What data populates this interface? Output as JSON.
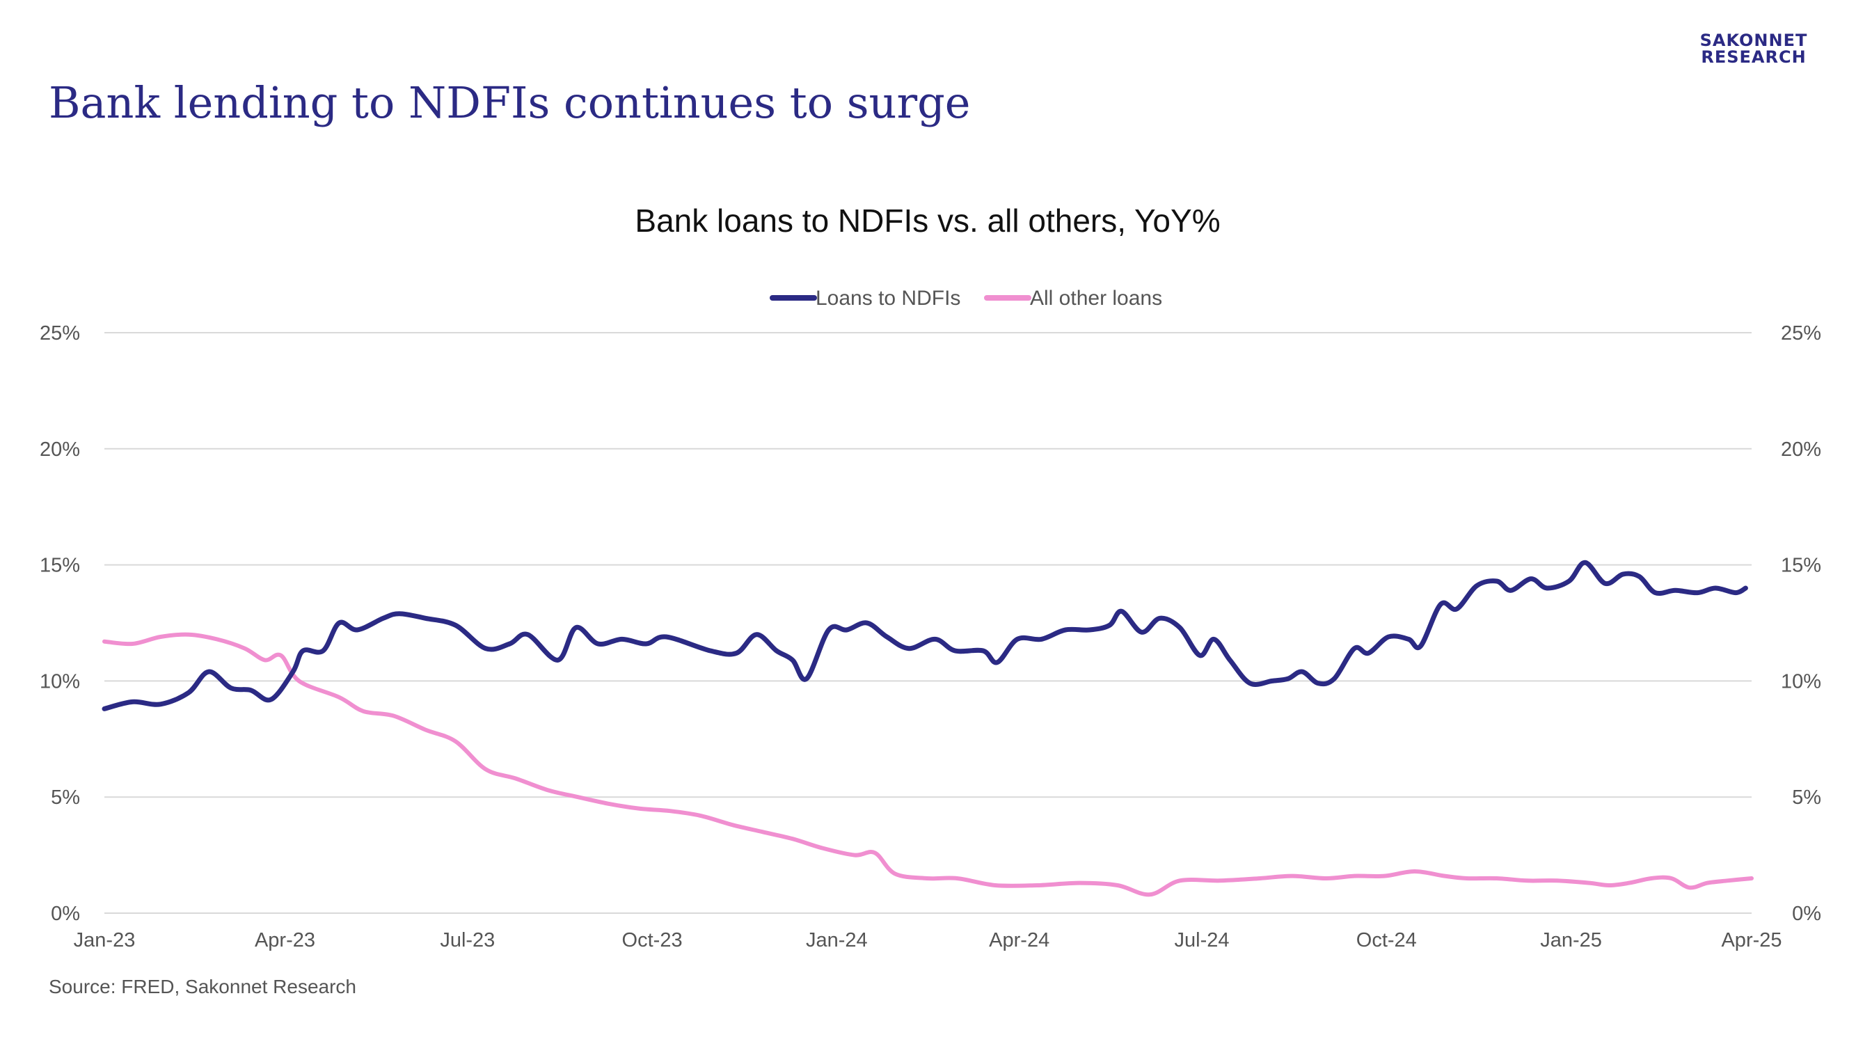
{
  "brand": {
    "logo_line1": "SAKONNET",
    "logo_line2": "RESEARCH"
  },
  "slide_title": "Bank lending to NDFIs continues to surge",
  "source": "Source: FRED, Sakonnet Research",
  "colors": {
    "ndfi": "#2b2a84",
    "other": "#f08fd0",
    "title": "#2b2a84",
    "grid": "#d9d9d9",
    "axis_text": "#555555"
  },
  "chart_data": {
    "type": "line",
    "title": "Bank loans to NDFIs vs. all others, YoY%",
    "legend_position": "top-center",
    "grid": true,
    "x_ticks": [
      "Jan-23",
      "Apr-23",
      "Jul-23",
      "Oct-23",
      "Jan-24",
      "Apr-24",
      "Jul-24",
      "Oct-24",
      "Jan-25",
      "Apr-25"
    ],
    "y_ticks": [
      "0%",
      "5%",
      "10%",
      "15%",
      "20%",
      "25%"
    ],
    "ylim": [
      0,
      25
    ],
    "xlim": [
      "2023-01-01",
      "2025-04-01"
    ],
    "series": [
      {
        "name": "Loans to NDFIs",
        "color": "#2b2a84",
        "points": [
          [
            "2023-01-01",
            8.8
          ],
          [
            "2023-01-15",
            9.1
          ],
          [
            "2023-01-29",
            9.0
          ],
          [
            "2023-02-12",
            9.5
          ],
          [
            "2023-02-22",
            10.4
          ],
          [
            "2023-03-05",
            9.7
          ],
          [
            "2023-03-15",
            9.6
          ],
          [
            "2023-03-25",
            9.2
          ],
          [
            "2023-04-05",
            10.4
          ],
          [
            "2023-04-10",
            11.3
          ],
          [
            "2023-04-20",
            11.3
          ],
          [
            "2023-04-28",
            12.5
          ],
          [
            "2023-05-07",
            12.2
          ],
          [
            "2023-05-20",
            12.7
          ],
          [
            "2023-05-28",
            12.9
          ],
          [
            "2023-06-10",
            12.7
          ],
          [
            "2023-06-25",
            12.4
          ],
          [
            "2023-07-10",
            11.4
          ],
          [
            "2023-07-22",
            11.6
          ],
          [
            "2023-07-31",
            12.0
          ],
          [
            "2023-08-15",
            10.9
          ],
          [
            "2023-08-24",
            12.3
          ],
          [
            "2023-09-04",
            11.6
          ],
          [
            "2023-09-16",
            11.8
          ],
          [
            "2023-09-28",
            11.6
          ],
          [
            "2023-10-08",
            11.9
          ],
          [
            "2023-10-30",
            11.3
          ],
          [
            "2023-11-12",
            11.2
          ],
          [
            "2023-11-22",
            12.0
          ],
          [
            "2023-12-02",
            11.3
          ],
          [
            "2023-12-10",
            10.9
          ],
          [
            "2023-12-17",
            10.1
          ],
          [
            "2023-12-28",
            12.2
          ],
          [
            "2024-01-06",
            12.2
          ],
          [
            "2024-01-16",
            12.5
          ],
          [
            "2024-01-26",
            11.9
          ],
          [
            "2024-02-06",
            11.4
          ],
          [
            "2024-02-19",
            11.8
          ],
          [
            "2024-02-29",
            11.3
          ],
          [
            "2024-03-14",
            11.3
          ],
          [
            "2024-03-21",
            10.8
          ],
          [
            "2024-03-31",
            11.8
          ],
          [
            "2024-04-12",
            11.8
          ],
          [
            "2024-04-24",
            12.2
          ],
          [
            "2024-05-06",
            12.2
          ],
          [
            "2024-05-16",
            12.4
          ],
          [
            "2024-05-22",
            13.0
          ],
          [
            "2024-06-01",
            12.1
          ],
          [
            "2024-06-10",
            12.7
          ],
          [
            "2024-06-20",
            12.3
          ],
          [
            "2024-06-30",
            11.1
          ],
          [
            "2024-07-07",
            11.8
          ],
          [
            "2024-07-15",
            10.9
          ],
          [
            "2024-07-25",
            9.9
          ],
          [
            "2024-08-05",
            10.0
          ],
          [
            "2024-08-13",
            10.1
          ],
          [
            "2024-08-20",
            10.4
          ],
          [
            "2024-08-28",
            9.9
          ],
          [
            "2024-09-05",
            10.1
          ],
          [
            "2024-09-15",
            11.4
          ],
          [
            "2024-09-22",
            11.2
          ],
          [
            "2024-10-02",
            11.9
          ],
          [
            "2024-10-12",
            11.8
          ],
          [
            "2024-10-18",
            11.5
          ],
          [
            "2024-10-28",
            13.3
          ],
          [
            "2024-11-05",
            13.1
          ],
          [
            "2024-11-15",
            14.1
          ],
          [
            "2024-11-25",
            14.3
          ],
          [
            "2024-12-02",
            13.9
          ],
          [
            "2024-12-12",
            14.4
          ],
          [
            "2024-12-20",
            14.0
          ],
          [
            "2024-12-31",
            14.3
          ],
          [
            "2025-01-08",
            15.1
          ],
          [
            "2025-01-18",
            14.2
          ],
          [
            "2025-01-27",
            14.6
          ],
          [
            "2025-02-04",
            14.5
          ],
          [
            "2025-02-12",
            13.8
          ],
          [
            "2025-02-22",
            13.9
          ],
          [
            "2025-03-05",
            13.8
          ],
          [
            "2025-03-14",
            14.0
          ],
          [
            "2025-03-24",
            13.8
          ],
          [
            "2025-03-29",
            14.0
          ]
        ]
      },
      {
        "name": "All other loans",
        "color": "#f08fd0",
        "points": [
          [
            "2023-01-01",
            11.7
          ],
          [
            "2023-01-15",
            11.6
          ],
          [
            "2023-01-29",
            11.9
          ],
          [
            "2023-02-12",
            12.0
          ],
          [
            "2023-02-26",
            11.8
          ],
          [
            "2023-03-12",
            11.4
          ],
          [
            "2023-03-22",
            10.9
          ],
          [
            "2023-03-30",
            11.1
          ],
          [
            "2023-04-08",
            10.0
          ],
          [
            "2023-04-28",
            9.3
          ],
          [
            "2023-05-10",
            8.7
          ],
          [
            "2023-05-25",
            8.5
          ],
          [
            "2023-06-10",
            7.9
          ],
          [
            "2023-06-25",
            7.4
          ],
          [
            "2023-07-10",
            6.2
          ],
          [
            "2023-07-25",
            5.8
          ],
          [
            "2023-08-10",
            5.3
          ],
          [
            "2023-08-25",
            5.0
          ],
          [
            "2023-09-10",
            4.7
          ],
          [
            "2023-09-25",
            4.5
          ],
          [
            "2023-10-10",
            4.4
          ],
          [
            "2023-10-25",
            4.2
          ],
          [
            "2023-11-10",
            3.8
          ],
          [
            "2023-11-25",
            3.5
          ],
          [
            "2023-12-10",
            3.2
          ],
          [
            "2023-12-25",
            2.8
          ],
          [
            "2024-01-10",
            2.5
          ],
          [
            "2024-01-20",
            2.6
          ],
          [
            "2024-01-30",
            1.7
          ],
          [
            "2024-02-15",
            1.5
          ],
          [
            "2024-03-01",
            1.5
          ],
          [
            "2024-03-20",
            1.2
          ],
          [
            "2024-04-10",
            1.2
          ],
          [
            "2024-05-01",
            1.3
          ],
          [
            "2024-05-20",
            1.2
          ],
          [
            "2024-06-05",
            0.8
          ],
          [
            "2024-06-20",
            1.4
          ],
          [
            "2024-07-10",
            1.4
          ],
          [
            "2024-07-30",
            1.5
          ],
          [
            "2024-08-15",
            1.6
          ],
          [
            "2024-09-01",
            1.5
          ],
          [
            "2024-09-15",
            1.6
          ],
          [
            "2024-09-30",
            1.6
          ],
          [
            "2024-10-15",
            1.8
          ],
          [
            "2024-10-30",
            1.6
          ],
          [
            "2024-11-10",
            1.5
          ],
          [
            "2024-11-25",
            1.5
          ],
          [
            "2024-12-10",
            1.4
          ],
          [
            "2024-12-25",
            1.4
          ],
          [
            "2025-01-10",
            1.3
          ],
          [
            "2025-01-20",
            1.2
          ],
          [
            "2025-01-30",
            1.3
          ],
          [
            "2025-02-10",
            1.5
          ],
          [
            "2025-02-20",
            1.5
          ],
          [
            "2025-03-01",
            1.1
          ],
          [
            "2025-03-10",
            1.3
          ],
          [
            "2025-03-20",
            1.4
          ],
          [
            "2025-04-01",
            1.5
          ]
        ]
      }
    ]
  }
}
